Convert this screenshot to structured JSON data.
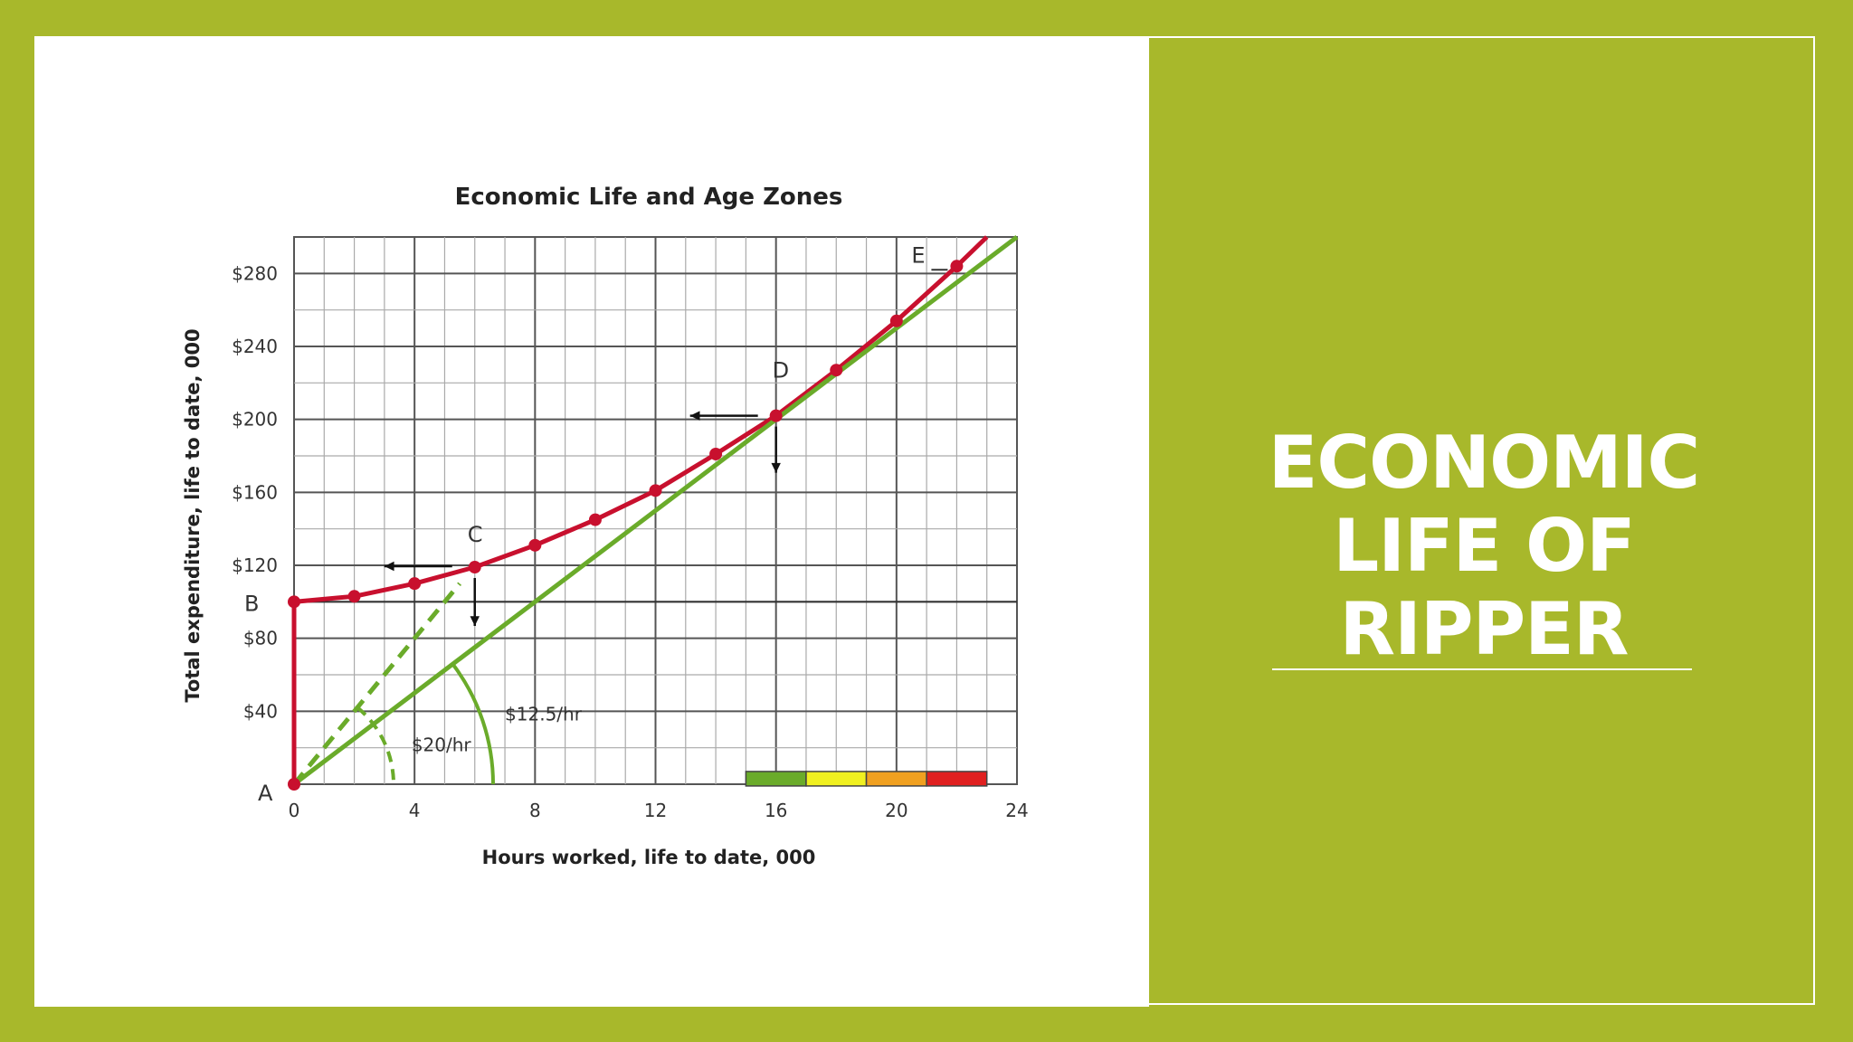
{
  "slide": {
    "title": "ECONOMIC\nLIFE OF\nRIPPER",
    "colors": {
      "background": "#a8b82b",
      "panel": "#ffffff",
      "title_text": "#ffffff"
    }
  },
  "chart_data": {
    "type": "line",
    "title": "Economic Life and Age Zones",
    "xlabel": "Hours worked, life to date, 000",
    "ylabel": "Total expenditure, life to date, 000",
    "xlim": [
      0,
      24
    ],
    "ylim": [
      0,
      300
    ],
    "x_ticks": [
      "0",
      "4",
      "8",
      "12",
      "16",
      "20",
      "24"
    ],
    "y_ticks": [
      "$40",
      "$80",
      "$120",
      "$160",
      "$200",
      "$240",
      "$280"
    ],
    "grid": true,
    "series": [
      {
        "role": "total-expenditure-curve",
        "color": "#c8102e",
        "x": [
          0,
          2,
          4,
          6,
          8,
          10,
          12,
          14,
          16,
          18,
          20,
          22
        ],
        "y": [
          100,
          103,
          110,
          119,
          131,
          145,
          161,
          181,
          202,
          227,
          254,
          284
        ]
      },
      {
        "role": "12.5-per-hour-line",
        "color": "#6aab2a",
        "x": [
          0,
          24
        ],
        "y": [
          0,
          300
        ]
      },
      {
        "role": "20-per-hour-line",
        "color": "#6aab2a",
        "dashed": true,
        "x": [
          0,
          5.5
        ],
        "y": [
          0,
          110
        ]
      }
    ],
    "initial_cost_segment": {
      "x": [
        0,
        0
      ],
      "y": [
        0,
        100
      ],
      "color": "#c8102e"
    },
    "reference_line_y": 100,
    "point_labels": [
      {
        "label": "A",
        "x": 0,
        "y": 0
      },
      {
        "label": "B",
        "x": 0,
        "y": 100
      },
      {
        "label": "C",
        "x": 6,
        "y": 119
      },
      {
        "label": "D",
        "x": 16,
        "y": 202
      },
      {
        "label": "E",
        "x": 22,
        "y": 284
      }
    ],
    "rate_annotations": [
      {
        "label": "$12.5/hr"
      },
      {
        "label": "$20/hr"
      }
    ],
    "age_zone_bar": {
      "x_start": 15,
      "x_end": 23,
      "colors": [
        "#6aab2a",
        "#f0f020",
        "#f0a020",
        "#e02020"
      ]
    }
  }
}
